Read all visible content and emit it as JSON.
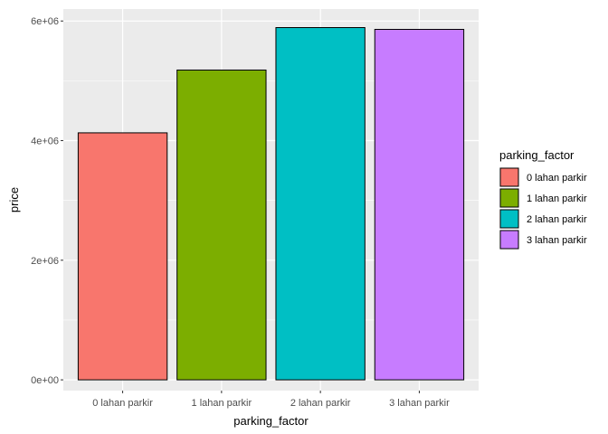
{
  "chart_data": {
    "type": "bar",
    "xlabel": "parking_factor",
    "ylabel": "price",
    "categories": [
      "0 lahan parkir",
      "1 lahan parkir",
      "2 lahan parkir",
      "3 lahan parkir"
    ],
    "values": [
      4130000,
      5180000,
      5890000,
      5860000
    ],
    "colors": [
      "#F8766D",
      "#7CAE00",
      "#00BFC4",
      "#C77CFF"
    ],
    "ylim": [
      -180000,
      6200000
    ],
    "yticks": [
      0,
      2000000,
      4000000,
      6000000
    ],
    "ytick_labels": [
      "0e+00",
      "2e+06",
      "4e+06",
      "6e+06"
    ],
    "grid": true,
    "panel_background": "#EBEBEB",
    "legend": {
      "title": "parking_factor",
      "position": "right",
      "entries": [
        "0 lahan parkir",
        "1 lahan parkir",
        "2 lahan parkir",
        "3 lahan parkir"
      ]
    }
  }
}
